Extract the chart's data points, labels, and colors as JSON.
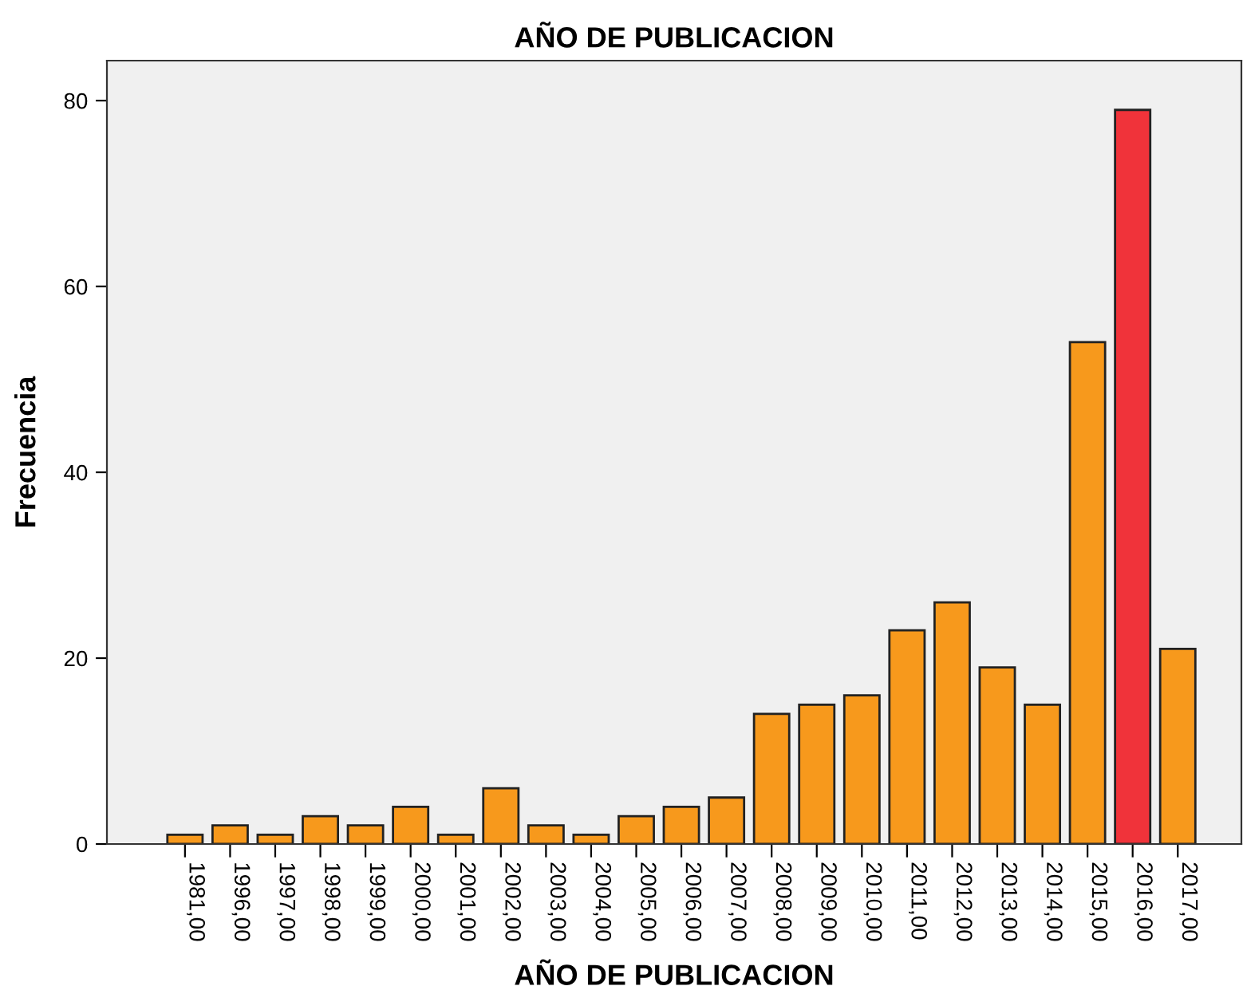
{
  "chart_data": {
    "type": "bar",
    "title": "AÑO DE PUBLICACION",
    "xlabel": "AÑO DE PUBLICACION",
    "ylabel": "Frecuencia",
    "categories": [
      "1981,00",
      "1996,00",
      "1997,00",
      "1998,00",
      "1999,00",
      "2000,00",
      "2001,00",
      "2002,00",
      "2003,00",
      "2004,00",
      "2005,00",
      "2006,00",
      "2007,00",
      "2008,00",
      "2009,00",
      "2010,00",
      "2011,00",
      "2012,00",
      "2013,00",
      "2014,00",
      "2015,00",
      "2016,00",
      "2017,00"
    ],
    "values": [
      1,
      2,
      1,
      3,
      2,
      4,
      1,
      6,
      2,
      1,
      3,
      4,
      5,
      14,
      15,
      16,
      23,
      26,
      19,
      15,
      54,
      79,
      21
    ],
    "colors": [
      "#f7991c",
      "#f7991c",
      "#f7991c",
      "#f7991c",
      "#f7991c",
      "#f7991c",
      "#f7991c",
      "#f7991c",
      "#f7991c",
      "#f7991c",
      "#f7991c",
      "#f7991c",
      "#f7991c",
      "#f7991c",
      "#f7991c",
      "#f7991c",
      "#f7991c",
      "#f7991c",
      "#f7991c",
      "#f7991c",
      "#f7991c",
      "#f0333a",
      "#f7991c"
    ],
    "ylim": [
      0,
      84.3
    ],
    "yticks": [
      0,
      20,
      40,
      60,
      80
    ],
    "grid": false,
    "legend": false
  }
}
